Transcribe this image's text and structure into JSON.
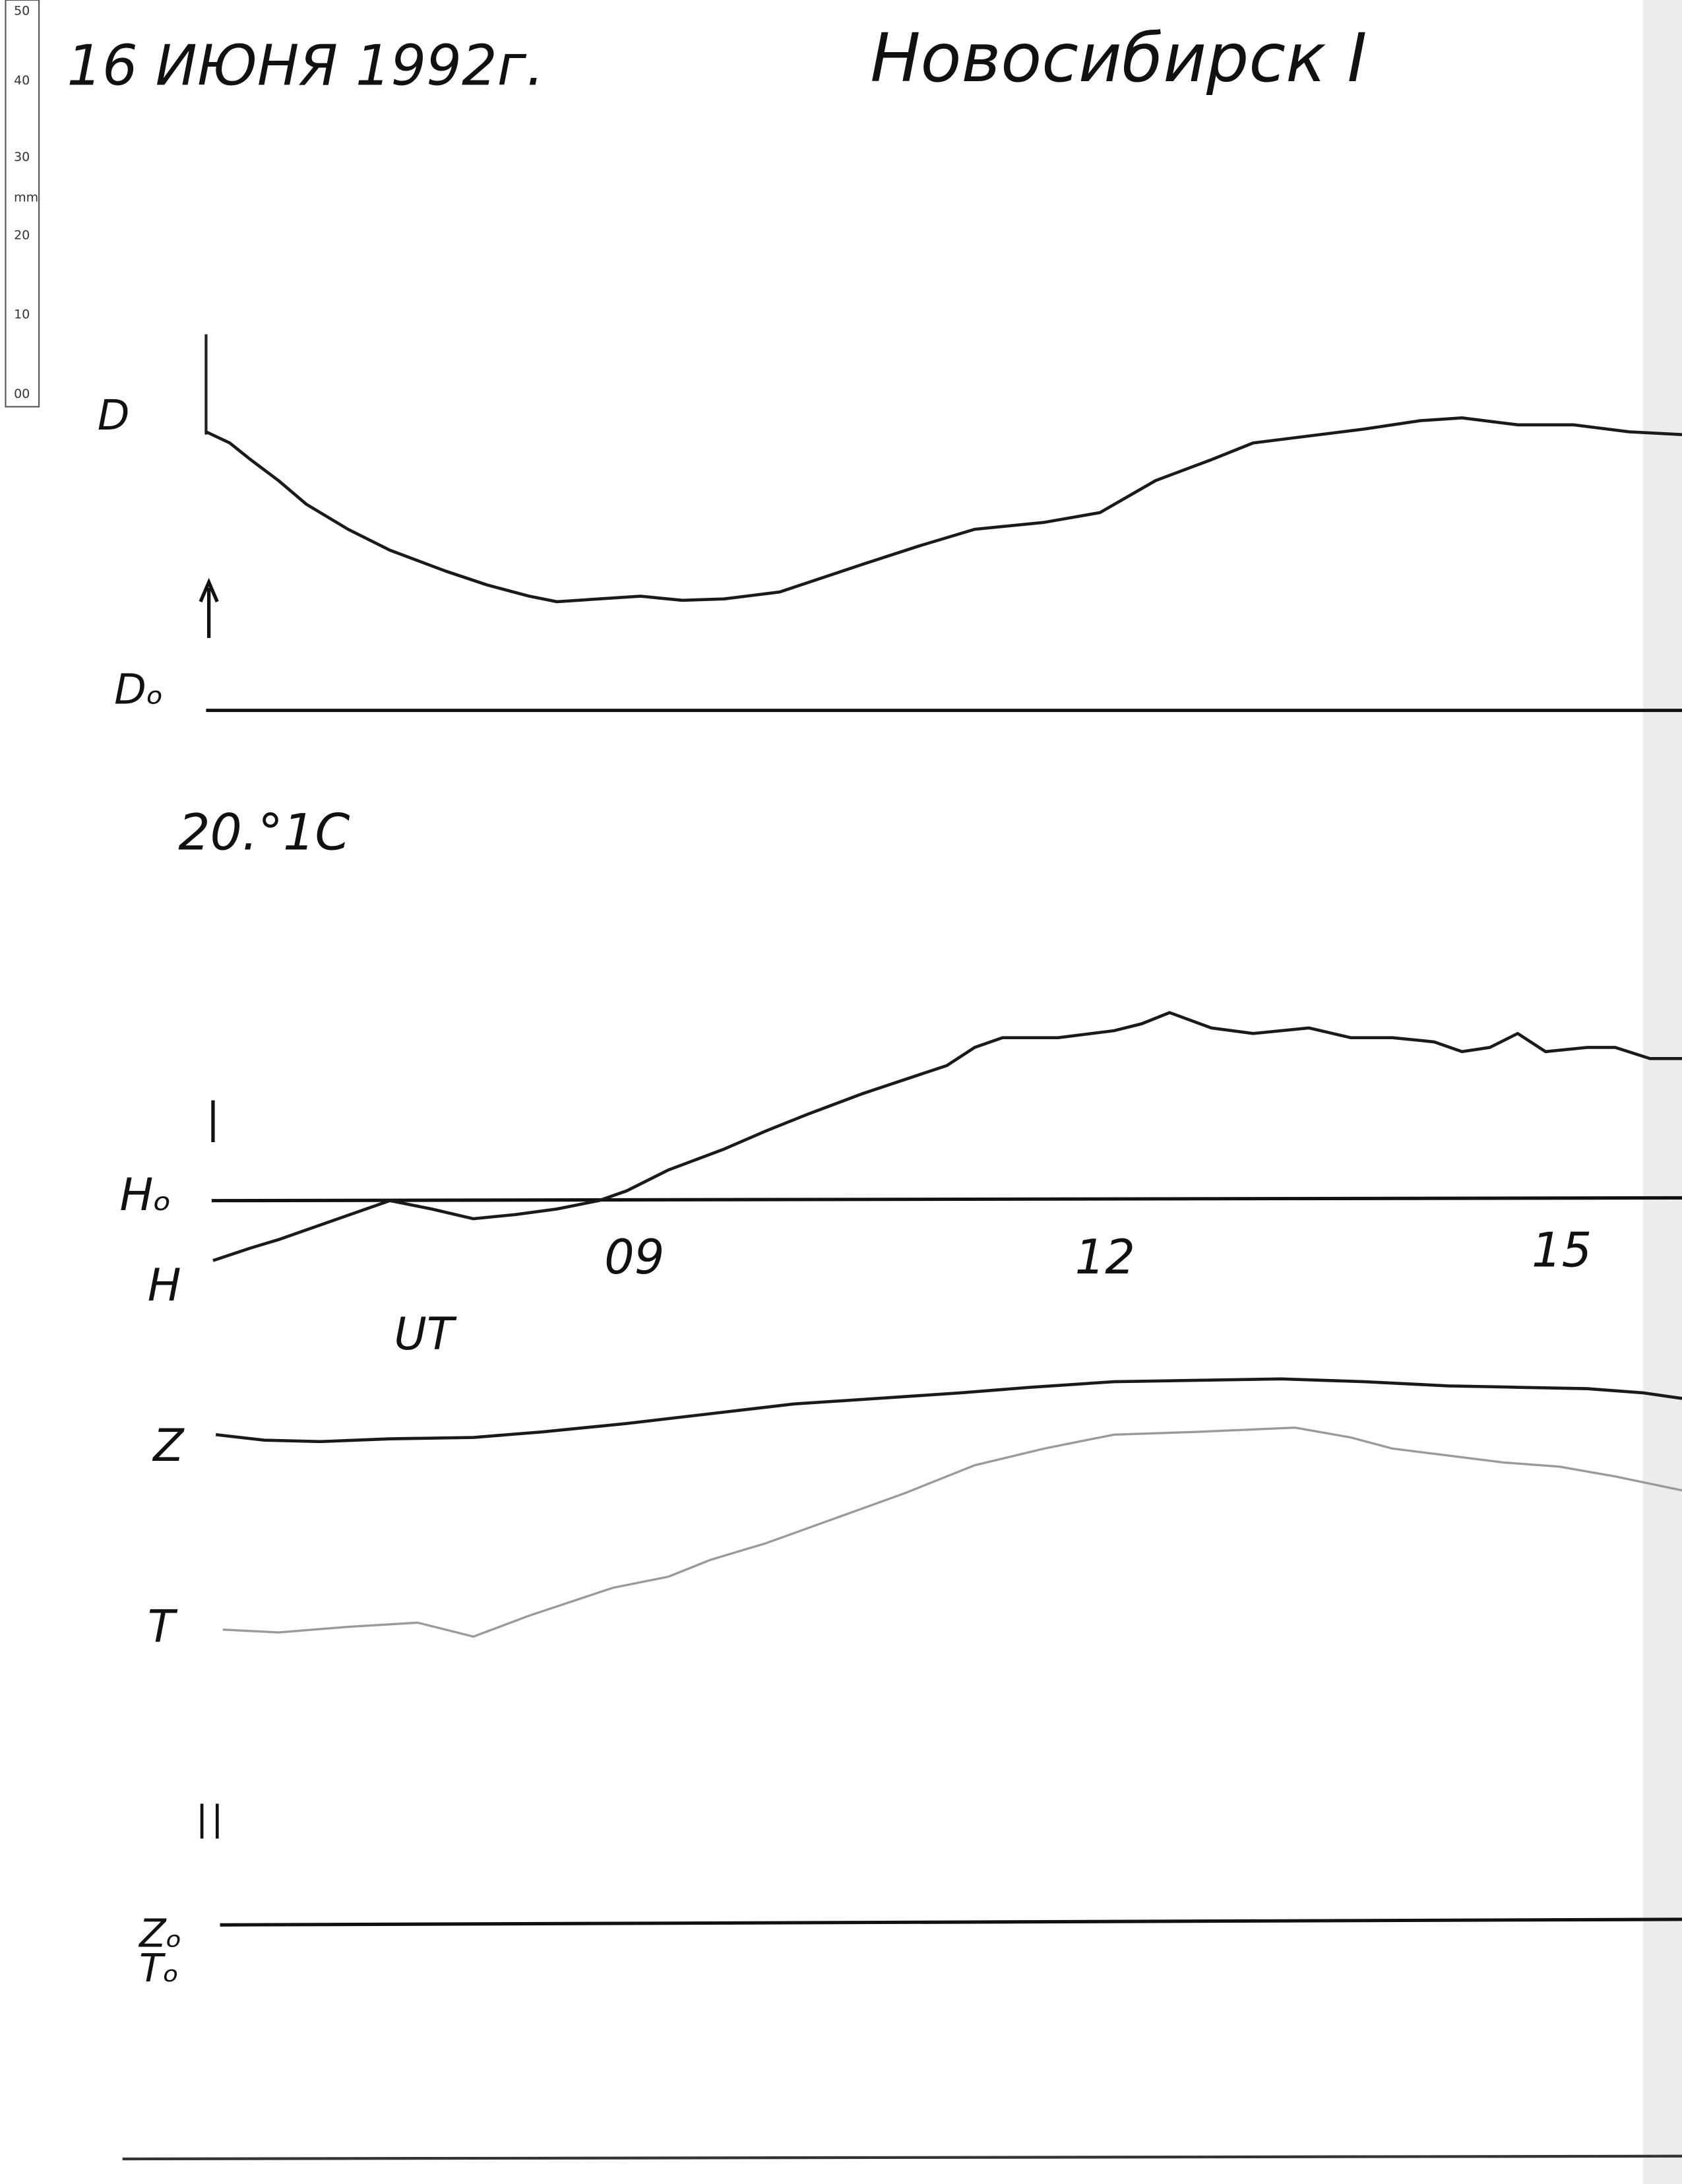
{
  "header": {
    "date": "16 ИЮНЯ 1992г.",
    "station": "Новосибирск I"
  },
  "ruler": {
    "labels": [
      "50",
      "40",
      "30",
      "mm",
      "20",
      "10",
      "00"
    ]
  },
  "traces": {
    "D": "D",
    "D0": "Dₒ",
    "temperature": "20.°1C",
    "H0": "Hₒ",
    "H": "H",
    "Z": "Z",
    "T": "T",
    "Z0": "Zₒ",
    "T0": "Tₒ"
  },
  "time_axis": {
    "labels": [
      "09",
      "12",
      "15"
    ],
    "unit": "UT"
  }
}
